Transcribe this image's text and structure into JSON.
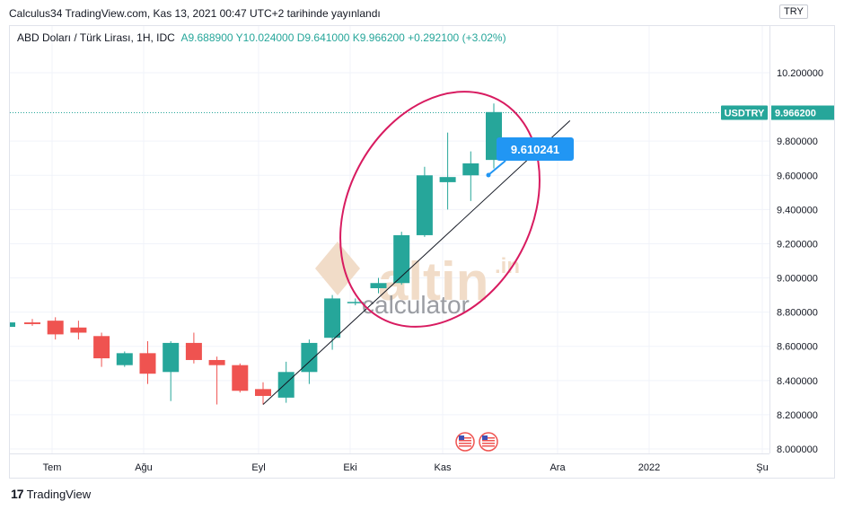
{
  "header": {
    "text": "Calculus34 TradingView.com, Kas 13, 2021 00:47 UTC+2 tarihinde yayınlandı"
  },
  "legend": {
    "symbol": "ABD Doları / Türk Lirası, 1H, IDC",
    "ohlc": "A9.688900  Y10.024000  D9.641000  K9.966200  +0.292100 (+3.02%)"
  },
  "currency_button": "TRY",
  "footer": {
    "brand": "TradingView",
    "mark": "17"
  },
  "watermark": {
    "brand": "altin",
    "suffix": ".in",
    "sub": "calculator"
  },
  "colors": {
    "up": "#26a69a",
    "down": "#ef5350",
    "annotation": "#d81b60",
    "callout": "#2196f3"
  },
  "chart_data": {
    "type": "candlestick",
    "symbol": "USDTRY",
    "last_price": 9.9662,
    "last_price_label": "9.966200",
    "ylim": [
      8.0,
      10.2
    ],
    "y_ticks": [
      "8.000000",
      "8.200000",
      "8.400000",
      "8.600000",
      "8.800000",
      "9.000000",
      "9.200000",
      "9.400000",
      "9.600000",
      "9.800000",
      "10.200000"
    ],
    "x_ticks": [
      "Tem",
      "Ağu",
      "Eyl",
      "Eki",
      "Kas",
      "Ara",
      "2022",
      "Şu"
    ],
    "callout_value": "9.610241",
    "candles": [
      {
        "o": 8.74,
        "h": 8.76,
        "l": 8.72,
        "c": 8.73
      },
      {
        "o": 8.75,
        "h": 8.77,
        "l": 8.64,
        "c": 8.67
      },
      {
        "o": 8.71,
        "h": 8.75,
        "l": 8.64,
        "c": 8.68
      },
      {
        "o": 8.66,
        "h": 8.68,
        "l": 8.48,
        "c": 8.53
      },
      {
        "o": 8.49,
        "h": 8.57,
        "l": 8.48,
        "c": 8.56
      },
      {
        "o": 8.56,
        "h": 8.63,
        "l": 8.38,
        "c": 8.44
      },
      {
        "o": 8.45,
        "h": 8.63,
        "l": 8.28,
        "c": 8.62
      },
      {
        "o": 8.62,
        "h": 8.68,
        "l": 8.5,
        "c": 8.52
      },
      {
        "o": 8.52,
        "h": 8.54,
        "l": 8.26,
        "c": 8.49
      },
      {
        "o": 8.49,
        "h": 8.5,
        "l": 8.33,
        "c": 8.34
      },
      {
        "o": 8.35,
        "h": 8.39,
        "l": 8.26,
        "c": 8.31
      },
      {
        "o": 8.3,
        "h": 8.51,
        "l": 8.27,
        "c": 8.45
      },
      {
        "o": 8.45,
        "h": 8.64,
        "l": 8.38,
        "c": 8.62
      },
      {
        "o": 8.65,
        "h": 8.9,
        "l": 8.58,
        "c": 8.88
      },
      {
        "o": 8.86,
        "h": 8.88,
        "l": 8.84,
        "c": 8.86
      },
      {
        "o": 8.94,
        "h": 9.0,
        "l": 8.91,
        "c": 8.97
      },
      {
        "o": 8.97,
        "h": 9.27,
        "l": 8.96,
        "c": 9.25
      },
      {
        "o": 9.25,
        "h": 9.65,
        "l": 9.24,
        "c": 9.6
      },
      {
        "o": 9.56,
        "h": 9.85,
        "l": 9.4,
        "c": 9.59
      },
      {
        "o": 9.6,
        "h": 9.74,
        "l": 9.45,
        "c": 9.67
      },
      {
        "o": 9.69,
        "h": 10.02,
        "l": 9.64,
        "c": 9.97
      }
    ],
    "trendline": [
      {
        "i": 10,
        "v": 8.26
      },
      {
        "i": 23.3,
        "v": 9.92
      }
    ]
  }
}
